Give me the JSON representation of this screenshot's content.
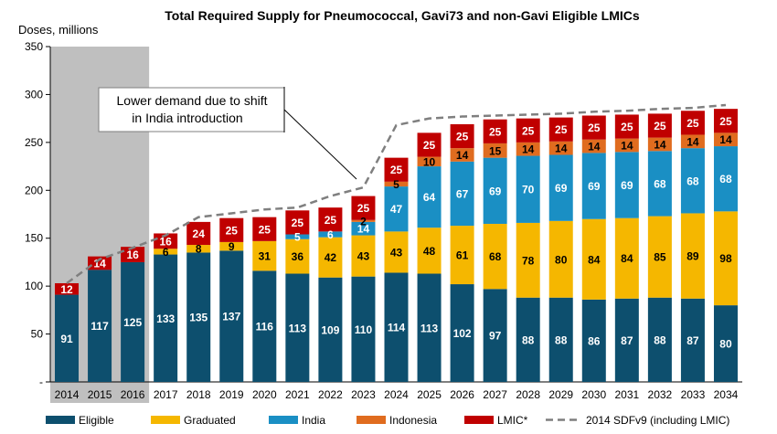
{
  "chart_data": {
    "type": "bar",
    "stacked": true,
    "title": "Total Required Supply for Pneumococcal, Gavi73 and non-Gavi Eligible LMICs",
    "ylabel": "Doses, millions",
    "xlabel": "",
    "ylim": [
      0,
      350
    ],
    "yticks": [
      "-",
      "50",
      "100",
      "150",
      "200",
      "250",
      "300",
      "350"
    ],
    "grid": false,
    "legend_position": "bottom",
    "historical_shaded": [
      "2014",
      "2015",
      "2016"
    ],
    "categories": [
      "2014",
      "2015",
      "2016",
      "2017",
      "2018",
      "2019",
      "2020",
      "2021",
      "2022",
      "2023",
      "2024",
      "2025",
      "2026",
      "2027",
      "2028",
      "2029",
      "2030",
      "2031",
      "2032",
      "2033",
      "2034"
    ],
    "series": [
      {
        "name": "Eligible",
        "color": "#0d4f6e",
        "label_color": "#ffffff",
        "values": [
          91,
          117,
          125,
          133,
          135,
          137,
          116,
          113,
          109,
          110,
          114,
          113,
          102,
          97,
          88,
          88,
          86,
          87,
          88,
          87,
          80
        ],
        "labels": [
          "91",
          "117",
          "125",
          "133",
          "135",
          "137",
          "116",
          "113",
          "109",
          "110",
          "114",
          "113",
          "102",
          "97",
          "88",
          "88",
          "86",
          "87",
          "88",
          "87",
          "80"
        ]
      },
      {
        "name": "Graduated",
        "color": "#f5b700",
        "label_color": "#000000",
        "values": [
          0,
          0,
          0,
          6,
          8,
          9,
          31,
          36,
          42,
          43,
          43,
          48,
          61,
          68,
          78,
          80,
          84,
          84,
          85,
          89,
          98
        ],
        "labels": [
          "",
          "",
          "",
          "6",
          "8",
          "9",
          "31",
          "36",
          "42",
          "43",
          "43",
          "48",
          "61",
          "68",
          "78",
          "80",
          "84",
          "84",
          "85",
          "89",
          "98"
        ]
      },
      {
        "name": "India",
        "color": "#1a8fc4",
        "label_color": "#ffffff",
        "values": [
          0,
          0,
          0,
          0,
          0,
          0,
          0,
          5,
          6,
          14,
          47,
          64,
          67,
          69,
          70,
          69,
          69,
          69,
          68,
          68,
          68
        ],
        "labels": [
          "",
          "",
          "",
          "",
          "",
          "",
          "",
          "5",
          "6",
          "14",
          "47",
          "64",
          "67",
          "69",
          "70",
          "69",
          "69",
          "69",
          "68",
          "68",
          "68"
        ]
      },
      {
        "name": "Indonesia",
        "color": "#e06c1f",
        "label_color": "#000000",
        "values": [
          0,
          0,
          0,
          0,
          0,
          0,
          0,
          0,
          0,
          2,
          5,
          10,
          14,
          15,
          14,
          14,
          14,
          14,
          14,
          14,
          14
        ],
        "labels": [
          "",
          "",
          "",
          "",
          "",
          "",
          "",
          "",
          "",
          "2",
          "5",
          "10",
          "14",
          "15",
          "14",
          "14",
          "14",
          "14",
          "14",
          "14",
          "14"
        ]
      },
      {
        "name": "LMIC*",
        "color": "#c00000",
        "label_color": "#ffffff",
        "values": [
          12,
          14,
          16,
          16,
          24,
          25,
          25,
          25,
          25,
          25,
          25,
          25,
          25,
          25,
          25,
          25,
          25,
          25,
          25,
          25,
          25
        ],
        "labels": [
          "12",
          "14",
          "16",
          "16",
          "24",
          "25",
          "25",
          "25",
          "25",
          "25",
          "25",
          "25",
          "25",
          "25",
          "25",
          "25",
          "25",
          "25",
          "25",
          "25",
          "25"
        ]
      }
    ],
    "line_series": {
      "name": "2014 SDFv9 (including LMIC)",
      "color": "#7f7f7f",
      "style": "dashed",
      "values": [
        103,
        128,
        140,
        153,
        172,
        176,
        180,
        182,
        194,
        203,
        268,
        275,
        277,
        278,
        279,
        280,
        282,
        283,
        285,
        286,
        289
      ]
    },
    "annotation": {
      "lines": [
        "Lower demand due to shift",
        "in India introduction"
      ]
    }
  }
}
